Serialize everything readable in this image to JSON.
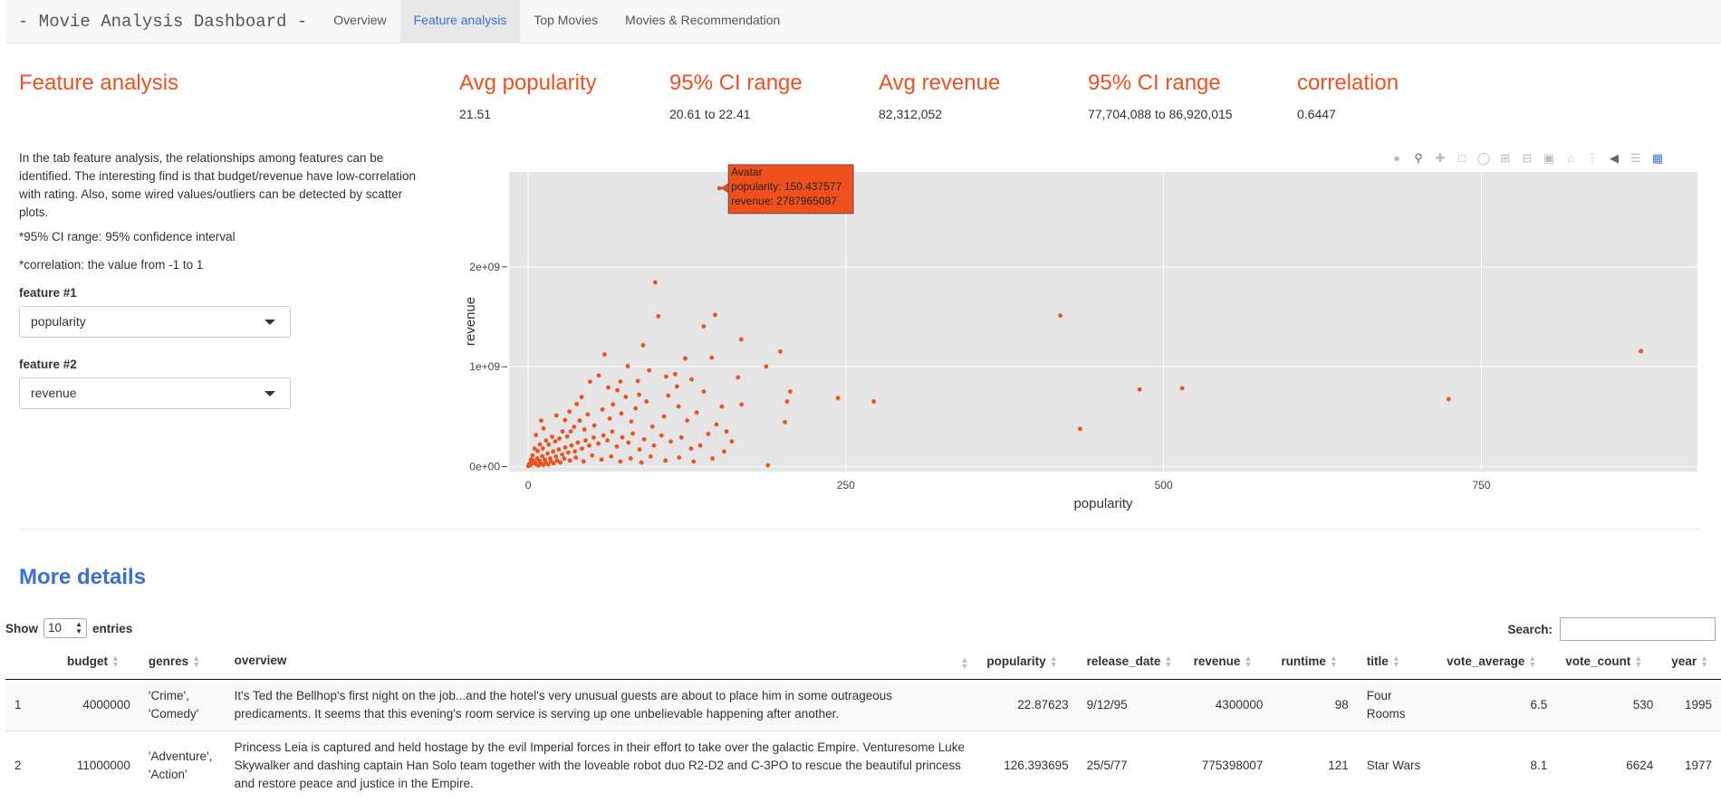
{
  "navbar": {
    "brand": "- Movie Analysis Dashboard -",
    "tabs": [
      "Overview",
      "Feature analysis",
      "Top Movies",
      "Movies & Recommendation"
    ],
    "active_tab": "Feature analysis"
  },
  "left": {
    "title": "Feature analysis",
    "description": "In the tab feature analysis, the relationships among features can be identified. The interesting find is that budget/revenue have low-correlation with rating. Also, some wired values/outliers can be detected by scatter plots.",
    "note_ci": "*95% CI range: 95% confidence interval",
    "note_corr": "*correlation: the value from -1 to 1",
    "feature1_label": "feature #1",
    "feature1_value": "popularity",
    "feature2_label": "feature #2",
    "feature2_value": "revenue"
  },
  "stats": [
    {
      "label": "Avg popularity",
      "value": "21.51"
    },
    {
      "label": "95% CI range",
      "value": "20.61 to 22.41"
    },
    {
      "label": "Avg revenue",
      "value": "82,312,052"
    },
    {
      "label": "95% CI range",
      "value": "77,704,088 to 86,920,015"
    },
    {
      "label": "correlation",
      "value": "0.6447"
    }
  ],
  "colors": {
    "accent": "#f0501e",
    "link": "#3a6fd8",
    "plot_bg": "#e5e5e5"
  },
  "modebar_icons": [
    "camera-icon",
    "zoom-icon",
    "pan-icon",
    "box-select-icon",
    "lasso-icon",
    "zoom-in-icon",
    "zoom-out-icon",
    "autoscale-icon",
    "home-icon",
    "spike-icon",
    "hover-closest-icon",
    "hover-compare-icon",
    "plotly-logo-icon"
  ],
  "chart_data": {
    "type": "scatter",
    "xlabel": "popularity",
    "ylabel": "revenue",
    "xlim": [
      -15,
      920
    ],
    "ylim": [
      -50000000.0,
      2950000000.0
    ],
    "x_ticks": [
      0,
      250,
      500,
      750
    ],
    "x_tick_labels": [
      "0",
      "250",
      "500",
      "750"
    ],
    "y_ticks": [
      0,
      1000000000.0,
      2000000000.0
    ],
    "y_tick_labels": [
      "0e+00",
      "1e+09",
      "2e+09"
    ],
    "grid": true,
    "tooltip": {
      "title": "Avatar",
      "line1": "popularity: 150.437577",
      "line2": "revenue: 2787965087",
      "x": 150.437577,
      "y": 2787965087
    },
    "points": [
      [
        150.44,
        2788000000.0
      ],
      [
        100,
        1845000000.0
      ],
      [
        875.58,
        1156000000.0
      ],
      [
        418.71,
        1513000000.0
      ],
      [
        724.25,
        675000000.0
      ],
      [
        481.1,
        772000000.0
      ],
      [
        514.57,
        785000000.0
      ],
      [
        434.28,
        378000000.0
      ],
      [
        271.97,
        652000000.0
      ],
      [
        243.79,
        686000000.0
      ],
      [
        206.23,
        752000000.0
      ],
      [
        198.37,
        1153000000.0
      ],
      [
        203.73,
        652000000.0
      ],
      [
        202.04,
        446000000.0
      ],
      [
        187.32,
        1002000000.0
      ],
      [
        167.58,
        1274000000.0
      ],
      [
        165.13,
        893000000.0
      ],
      [
        167.93,
        621000000.0
      ],
      [
        188.67,
        13000000.0
      ],
      [
        147.1,
        1519000000.0
      ],
      [
        138.13,
        1405000000.0
      ],
      [
        102.5,
        1506000000.0
      ],
      [
        95.2,
        964000000.0
      ],
      [
        123.6,
        1084000000.0
      ],
      [
        115.7,
        926000000.0
      ],
      [
        144.45,
        1091000000.0
      ],
      [
        128.65,
        873000000.0
      ],
      [
        110.2,
        712000000.0
      ],
      [
        90.5,
        1215000000.0
      ],
      [
        78.4,
        1006000000.0
      ],
      [
        86.3,
        857000000.0
      ],
      [
        60.1,
        1123000000.0
      ],
      [
        70.2,
        765000000.0
      ],
      [
        55.6,
        912000000.0
      ],
      [
        48.7,
        851000000.0
      ],
      [
        38.2,
        626000000.0
      ],
      [
        32.5,
        551000000.0
      ],
      [
        42.1,
        696000000.0
      ],
      [
        29.1,
        465000000.0
      ],
      [
        22.3,
        512000000.0
      ],
      [
        12.1,
        382000000.0
      ],
      [
        10.3,
        461000000.0
      ],
      [
        6.2,
        316000000.0
      ],
      [
        148.2,
        422000000.0
      ],
      [
        141.8,
        327000000.0
      ],
      [
        132.6,
        542000000.0
      ],
      [
        125.1,
        462000000.0
      ],
      [
        118.4,
        603000000.0
      ],
      [
        106.9,
        502000000.0
      ],
      [
        97.8,
        401000000.0
      ],
      [
        93.1,
        652000000.0
      ],
      [
        84.6,
        583000000.0
      ],
      [
        81.2,
        452000000.0
      ],
      [
        76.9,
        698000000.0
      ],
      [
        73.4,
        532000000.0
      ],
      [
        66.8,
        623000000.0
      ],
      [
        64.2,
        481000000.0
      ],
      [
        58.5,
        572000000.0
      ],
      [
        52.1,
        412000000.0
      ],
      [
        46.9,
        523000000.0
      ],
      [
        44.3,
        372000000.0
      ],
      [
        40.6,
        461000000.0
      ],
      [
        36.2,
        398000000.0
      ],
      [
        33.5,
        352000000.0
      ],
      [
        30.8,
        301000000.0
      ],
      [
        27.1,
        352000000.0
      ],
      [
        24.6,
        281000000.0
      ],
      [
        21.4,
        252000000.0
      ],
      [
        18.9,
        298000000.0
      ],
      [
        16.2,
        221000000.0
      ],
      [
        14.1,
        261000000.0
      ],
      [
        11.6,
        182000000.0
      ],
      [
        9.3,
        222000000.0
      ],
      [
        7.5,
        156000000.0
      ],
      [
        5.1,
        181000000.0
      ],
      [
        3.4,
        112000000.0
      ],
      [
        2.2,
        72000000.0
      ],
      [
        1.1,
        31000000.0
      ],
      [
        0.5,
        12000000.0
      ],
      [
        0.2,
        5000000.0
      ],
      [
        135.4,
        211000000.0
      ],
      [
        128.2,
        181000000.0
      ],
      [
        120.6,
        292000000.0
      ],
      [
        112.3,
        251000000.0
      ],
      [
        104.9,
        312000000.0
      ],
      [
        99.1,
        211000000.0
      ],
      [
        91.3,
        273000000.0
      ],
      [
        87.6,
        172000000.0
      ],
      [
        82.3,
        331000000.0
      ],
      [
        78.9,
        241000000.0
      ],
      [
        74.1,
        292000000.0
      ],
      [
        69.8,
        201000000.0
      ],
      [
        66.1,
        351000000.0
      ],
      [
        62.4,
        262000000.0
      ],
      [
        59.3,
        312000000.0
      ],
      [
        55.2,
        231000000.0
      ],
      [
        51.6,
        291000000.0
      ],
      [
        48.1,
        211000000.0
      ],
      [
        45.2,
        262000000.0
      ],
      [
        42.4,
        181000000.0
      ],
      [
        39.1,
        241000000.0
      ],
      [
        36.8,
        152000000.0
      ],
      [
        34.1,
        212000000.0
      ],
      [
        31.6,
        141000000.0
      ],
      [
        29.2,
        192000000.0
      ],
      [
        26.8,
        121000000.0
      ],
      [
        24.1,
        172000000.0
      ],
      [
        21.9,
        101000000.0
      ],
      [
        19.6,
        151000000.0
      ],
      [
        17.4,
        82000000.0
      ],
      [
        15.3,
        131000000.0
      ],
      [
        13.2,
        71000000.0
      ],
      [
        11.1,
        105000000.0
      ],
      [
        9.1,
        58000000.0
      ],
      [
        7.2,
        83000000.0
      ],
      [
        5.6,
        41000000.0
      ],
      [
        4.1,
        62000000.0
      ],
      [
        3.1,
        31000000.0
      ],
      [
        2.1,
        22000000.0
      ],
      [
        1.6,
        14000000.0
      ],
      [
        145.1,
        81000000.0
      ],
      [
        130.2,
        51000000.0
      ],
      [
        118.8,
        91000000.0
      ],
      [
        108.1,
        61000000.0
      ],
      [
        96.4,
        102000000.0
      ],
      [
        89.2,
        41000000.0
      ],
      [
        80.7,
        82000000.0
      ],
      [
        72.5,
        51000000.0
      ],
      [
        65.3,
        102000000.0
      ],
      [
        57.8,
        71000000.0
      ],
      [
        50.4,
        111000000.0
      ],
      [
        43.6,
        52000000.0
      ],
      [
        37.5,
        91000000.0
      ],
      [
        32.9,
        61000000.0
      ],
      [
        28.4,
        81000000.0
      ],
      [
        25.3,
        41000000.0
      ],
      [
        22.8,
        61000000.0
      ],
      [
        20.1,
        32000000.0
      ],
      [
        17.9,
        51000000.0
      ],
      [
        15.8,
        21000000.0
      ],
      [
        13.7,
        41000000.0
      ],
      [
        11.9,
        15000000.0
      ],
      [
        10.2,
        31000000.0
      ],
      [
        8.3,
        11000000.0
      ],
      [
        6.6,
        21000000.0
      ],
      [
        154.2,
        151000000.0
      ],
      [
        160.3,
        252000000.0
      ],
      [
        156.1,
        352000000.0
      ],
      [
        152.4,
        602000000.0
      ],
      [
        138.2,
        752000000.0
      ],
      [
        117.1,
        802000000.0
      ],
      [
        108.6,
        902000000.0
      ],
      [
        87.3,
        721000000.0
      ],
      [
        72.6,
        852000000.0
      ],
      [
        63.1,
        792000000.0
      ]
    ]
  },
  "details_title": "More details",
  "table": {
    "show_label": "Show",
    "entries_value": "10",
    "entries_label": "entries",
    "search_label": "Search:",
    "search_value": "",
    "columns": [
      "",
      "budget",
      "genres",
      "overview",
      "popularity",
      "release_date",
      "revenue",
      "runtime",
      "title",
      "vote_average",
      "vote_count",
      "year"
    ],
    "rows": [
      [
        "1",
        "4000000",
        "'Crime', 'Comedy'",
        "It's Ted the Bellhop's first night on the job...and the hotel's very unusual guests are about to place him in some outrageous predicaments. It seems that this evening's room service is serving up one unbelievable happening after another.",
        "22.87623",
        "9/12/95",
        "4300000",
        "98",
        "Four Rooms",
        "6.5",
        "530",
        "1995"
      ],
      [
        "2",
        "11000000",
        "'Adventure', 'Action'",
        "Princess Leia is captured and held hostage by the evil Imperial forces in their effort to take over the galactic Empire. Venturesome Luke Skywalker and dashing captain Han Solo team together with the loveable robot duo R2-D2 and C-3PO to rescue the beautiful princess and restore peace and justice in the Empire.",
        "126.393695",
        "25/5/77",
        "775398007",
        "121",
        "Star Wars",
        "8.1",
        "6624",
        "1977"
      ]
    ]
  }
}
